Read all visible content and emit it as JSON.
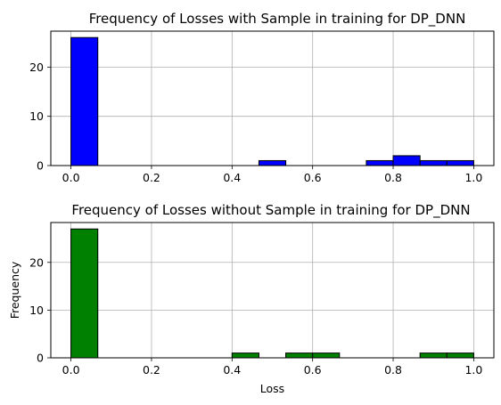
{
  "chart_data": [
    {
      "type": "bar",
      "title": "Frequency of Losses with Sample in training for DP_DNN",
      "xlabel": "",
      "ylabel": "",
      "bin_width": 0.0667,
      "bins": [
        0.0,
        0.0667,
        0.1333,
        0.2,
        0.2667,
        0.3333,
        0.4,
        0.4667,
        0.5333,
        0.6,
        0.6667,
        0.7333,
        0.8,
        0.8667,
        0.9333
      ],
      "values": [
        26,
        0,
        0,
        0,
        0,
        0,
        0,
        1,
        0,
        0,
        0,
        1,
        2,
        1,
        1
      ],
      "xlim": [
        -0.05,
        1.05
      ],
      "ylim": [
        0,
        27.3
      ],
      "xticks": [
        "0.0",
        "0.2",
        "0.4",
        "0.6",
        "0.8",
        "1.0"
      ],
      "yticks": [
        "0",
        "10",
        "20"
      ],
      "color": "#0000ff",
      "edgecolor": "#000000",
      "grid": true
    },
    {
      "type": "bar",
      "title": "Frequency of Losses without Sample in training for DP_DNN",
      "xlabel": "Loss",
      "ylabel": "Frequency",
      "bin_width": 0.0667,
      "bins": [
        0.0,
        0.0667,
        0.1333,
        0.2,
        0.2667,
        0.3333,
        0.4,
        0.4667,
        0.5333,
        0.6,
        0.6667,
        0.7333,
        0.8,
        0.8667,
        0.9333
      ],
      "values": [
        27,
        0,
        0,
        0,
        0,
        0,
        1,
        0,
        1,
        1,
        0,
        0,
        0,
        1,
        1
      ],
      "xlim": [
        -0.05,
        1.05
      ],
      "ylim": [
        0,
        28.35
      ],
      "xticks": [
        "0.0",
        "0.2",
        "0.4",
        "0.6",
        "0.8",
        "1.0"
      ],
      "yticks": [
        "0",
        "10",
        "20"
      ],
      "color": "#008000",
      "edgecolor": "#000000",
      "grid": true
    }
  ]
}
